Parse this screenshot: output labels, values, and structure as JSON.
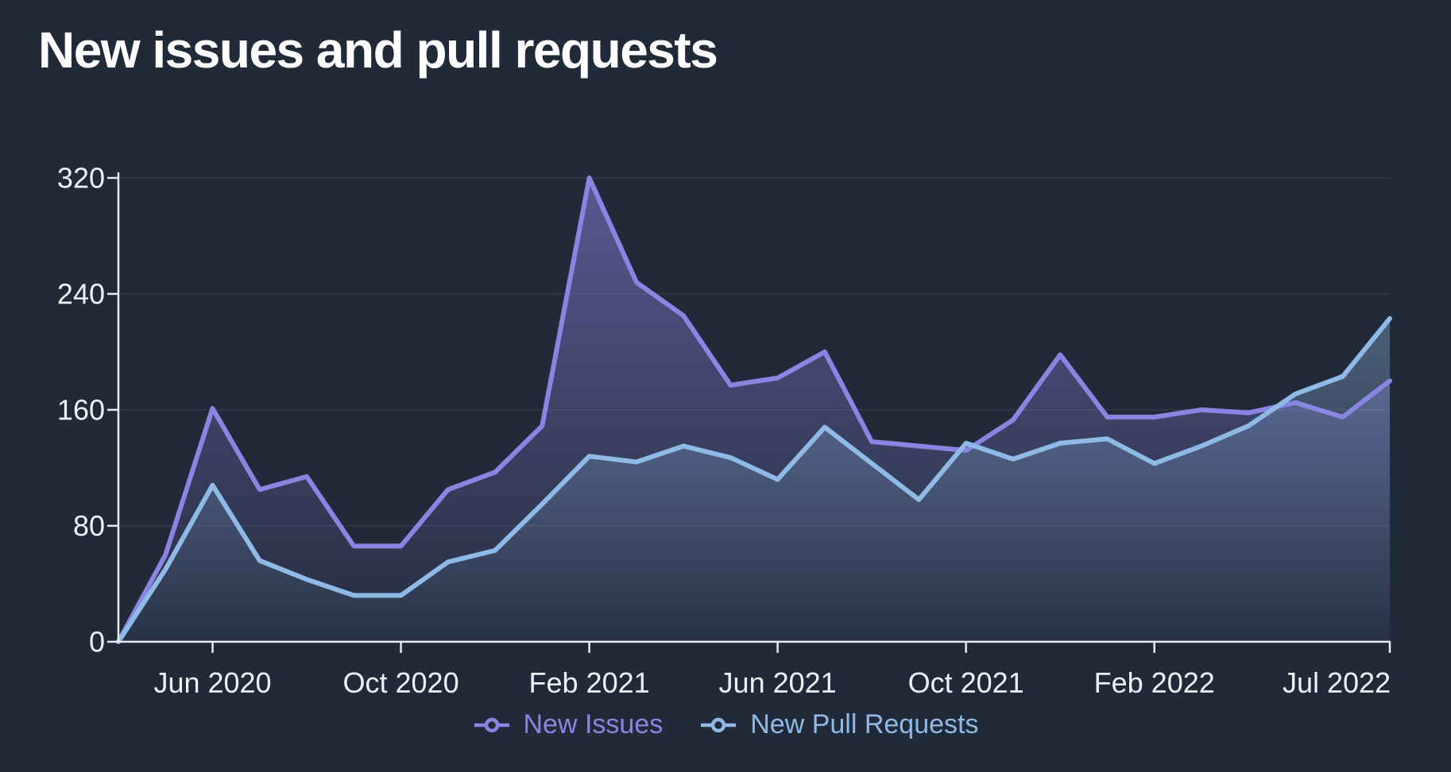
{
  "page": {
    "background": "#212a39"
  },
  "header": {
    "title": "New issues and pull requests"
  },
  "axis": {
    "line_color": "#e7ecf2",
    "label_color": "#eef2f7",
    "grid_color": "rgba(255,255,255,0.06)"
  },
  "legend": {
    "items": [
      {
        "label": "New Issues",
        "color": "#8a85e3"
      },
      {
        "label": "New Pull Requests",
        "color": "#8fb9e6"
      }
    ]
  },
  "chart_data": {
    "type": "area",
    "title": "New issues and pull requests",
    "xlabel": "",
    "ylabel": "",
    "ylim": [
      0,
      320
    ],
    "yticks": [
      0,
      80,
      160,
      240,
      320
    ],
    "grid": true,
    "legend_position": "bottom",
    "categories": [
      "Apr 2020",
      "May 2020",
      "Jun 2020",
      "Jul 2020",
      "Aug 2020",
      "Sep 2020",
      "Oct 2020",
      "Nov 2020",
      "Dec 2020",
      "Jan 2021",
      "Feb 2021",
      "Mar 2021",
      "Apr 2021",
      "May 2021",
      "Jun 2021",
      "Jul 2021",
      "Aug 2021",
      "Sep 2021",
      "Oct 2021",
      "Nov 2021",
      "Dec 2021",
      "Jan 2022",
      "Feb 2022",
      "Mar 2022",
      "Apr 2022",
      "May 2022",
      "Jun 2022",
      "Jul 2022"
    ],
    "xtick_indices": [
      2,
      6,
      10,
      14,
      18,
      22,
      27
    ],
    "xtick_labels": [
      "Jun 2020",
      "Oct 2020",
      "Feb 2021",
      "Jun 2021",
      "Oct 2021",
      "Feb 2022",
      "Jul 2022"
    ],
    "series": [
      {
        "name": "New Issues",
        "color": "#8a85e3",
        "values": [
          0,
          60,
          161,
          105,
          114,
          66,
          66,
          105,
          117,
          149,
          320,
          248,
          225,
          177,
          182,
          200,
          138,
          135,
          132,
          153,
          198,
          155,
          155,
          160,
          158,
          165,
          155,
          180
        ]
      },
      {
        "name": "New Pull Requests",
        "color": "#8fb9e6",
        "values": [
          0,
          50,
          108,
          56,
          43,
          32,
          32,
          55,
          63,
          95,
          128,
          124,
          135,
          127,
          112,
          148,
          123,
          98,
          137,
          126,
          137,
          140,
          123,
          135,
          149,
          171,
          183,
          223
        ]
      }
    ]
  }
}
